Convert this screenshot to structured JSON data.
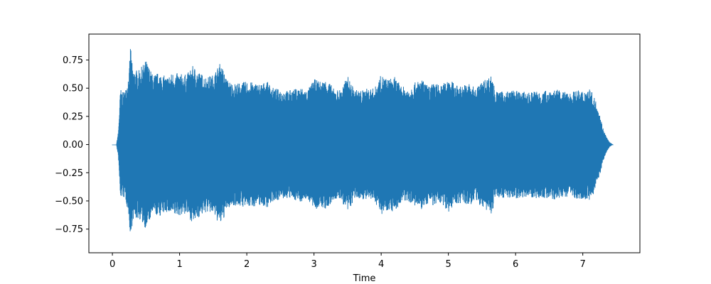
{
  "chart_data": {
    "type": "area",
    "title": "",
    "xlabel": "Time",
    "ylabel": "",
    "xlim": [
      -0.35,
      7.85
    ],
    "ylim": [
      -0.96,
      0.98
    ],
    "grid": false,
    "legend": "none",
    "line_color": "#1f77b4",
    "x_ticks": [
      0,
      1,
      2,
      3,
      4,
      5,
      6,
      7
    ],
    "x_tick_labels": [
      "0",
      "1",
      "2",
      "3",
      "4",
      "5",
      "6",
      "7"
    ],
    "y_ticks": [
      0.75,
      0.5,
      0.25,
      0.0,
      -0.25,
      -0.5,
      -0.75
    ],
    "y_tick_labels": [
      "0.75",
      "0.50",
      "0.25",
      "0.00",
      "−0.25",
      "−0.50",
      "−0.75"
    ],
    "envelope": {
      "time": [
        0.0,
        0.06,
        0.09,
        0.12,
        0.15,
        0.2,
        0.25,
        0.27,
        0.3,
        0.4,
        0.5,
        0.6,
        0.7,
        0.8,
        0.9,
        1.0,
        1.1,
        1.2,
        1.3,
        1.4,
        1.5,
        1.6,
        1.65,
        1.7,
        1.8,
        1.9,
        2.0,
        2.1,
        2.2,
        2.3,
        2.4,
        2.5,
        2.6,
        2.7,
        2.8,
        2.9,
        3.0,
        3.1,
        3.2,
        3.3,
        3.4,
        3.5,
        3.6,
        3.7,
        3.8,
        3.9,
        4.0,
        4.1,
        4.2,
        4.3,
        4.4,
        4.5,
        4.6,
        4.7,
        4.8,
        4.9,
        5.0,
        5.1,
        5.2,
        5.3,
        5.4,
        5.5,
        5.6,
        5.65,
        5.7,
        5.8,
        5.9,
        6.0,
        6.1,
        6.2,
        6.3,
        6.4,
        6.5,
        6.6,
        6.7,
        6.8,
        6.9,
        7.0,
        7.1,
        7.15,
        7.2,
        7.25,
        7.3,
        7.35,
        7.4,
        7.45
      ],
      "amplitude": [
        0.0,
        0.0,
        0.12,
        0.5,
        0.46,
        0.5,
        0.65,
        0.9,
        0.67,
        0.66,
        0.75,
        0.62,
        0.64,
        0.6,
        0.64,
        0.63,
        0.62,
        0.7,
        0.64,
        0.6,
        0.62,
        0.72,
        0.67,
        0.58,
        0.54,
        0.55,
        0.56,
        0.55,
        0.54,
        0.56,
        0.5,
        0.49,
        0.48,
        0.49,
        0.51,
        0.48,
        0.58,
        0.56,
        0.58,
        0.49,
        0.49,
        0.61,
        0.49,
        0.48,
        0.5,
        0.5,
        0.62,
        0.58,
        0.6,
        0.52,
        0.5,
        0.55,
        0.58,
        0.52,
        0.55,
        0.52,
        0.6,
        0.53,
        0.52,
        0.55,
        0.5,
        0.56,
        0.6,
        0.62,
        0.47,
        0.47,
        0.48,
        0.48,
        0.47,
        0.46,
        0.48,
        0.47,
        0.49,
        0.49,
        0.47,
        0.46,
        0.48,
        0.48,
        0.5,
        0.45,
        0.38,
        0.28,
        0.15,
        0.07,
        0.02,
        0.0
      ]
    }
  }
}
